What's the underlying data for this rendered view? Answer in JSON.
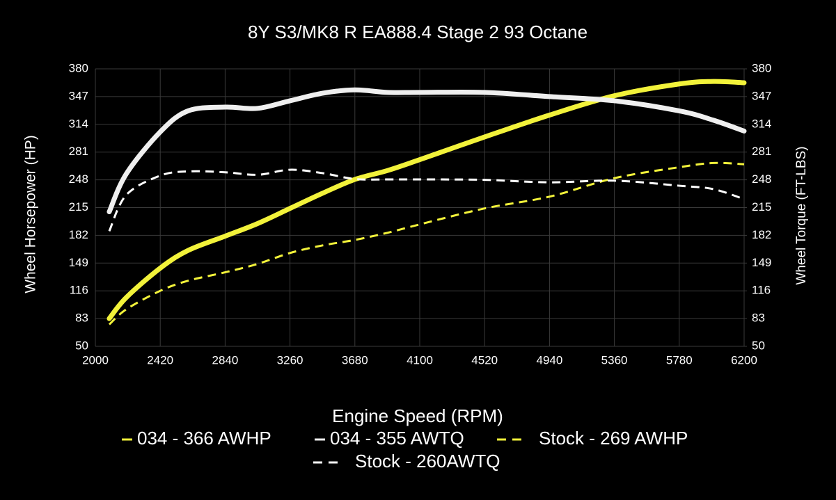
{
  "chart_data": {
    "type": "line",
    "title": "8Y S3/MK8 R EA888.4 Stage 2 93 Octane",
    "x_label": "Engine Speed (RPM)",
    "y_label": "Wheel Horsepower (HP)",
    "y2_label": "Wheel Torque (FT-LBS)",
    "x": [
      2090,
      2200,
      2420,
      2600,
      2840,
      3050,
      3260,
      3470,
      3680,
      3890,
      4100,
      4520,
      4940,
      5360,
      5780,
      6000,
      6200
    ],
    "series": [
      {
        "name": "034 - 366 AWHP",
        "color": "#f2f23a",
        "dashed": false,
        "values": [
          83,
          108,
          143,
          164,
          181,
          196,
          214,
          232,
          248.5,
          259,
          272,
          299,
          325,
          348,
          362,
          365,
          363.5
        ]
      },
      {
        "name": "034 - 355 AWTQ",
        "color": "#efefef",
        "dashed": false,
        "axis": "y2",
        "values": [
          210,
          255,
          305,
          330,
          334.5,
          333,
          342,
          351,
          355,
          352,
          352,
          352,
          347,
          342,
          330,
          319,
          306
        ]
      },
      {
        "name": "Stock - 269 AWHP",
        "color": "#f2f23a",
        "dashed": true,
        "values": [
          76,
          94,
          116,
          128,
          138,
          148,
          161,
          170,
          176.5,
          185,
          195,
          214,
          228,
          250,
          263,
          268,
          266.5
        ]
      },
      {
        "name": "Stock - 260AWTQ",
        "color": "#ffffff",
        "dashed": true,
        "axis": "y2",
        "values": [
          187,
          230,
          253,
          258,
          257,
          254,
          260,
          256,
          249,
          248.5,
          248.5,
          248,
          245,
          247,
          241,
          237,
          225
        ]
      }
    ],
    "xlim": [
      2000,
      6200
    ],
    "xticks": [
      2000,
      2420,
      2840,
      3260,
      3680,
      4100,
      4520,
      4940,
      5360,
      5780,
      6200
    ],
    "ylim": [
      50,
      380
    ],
    "yticks": [
      50,
      83,
      116,
      149,
      182,
      215,
      248,
      281,
      314,
      347,
      380
    ],
    "y2lim": [
      50,
      380
    ],
    "y2ticks": [
      50,
      83,
      116,
      149,
      182,
      215,
      248,
      281,
      314,
      347,
      380
    ],
    "grid": true,
    "legend": "bottom"
  }
}
